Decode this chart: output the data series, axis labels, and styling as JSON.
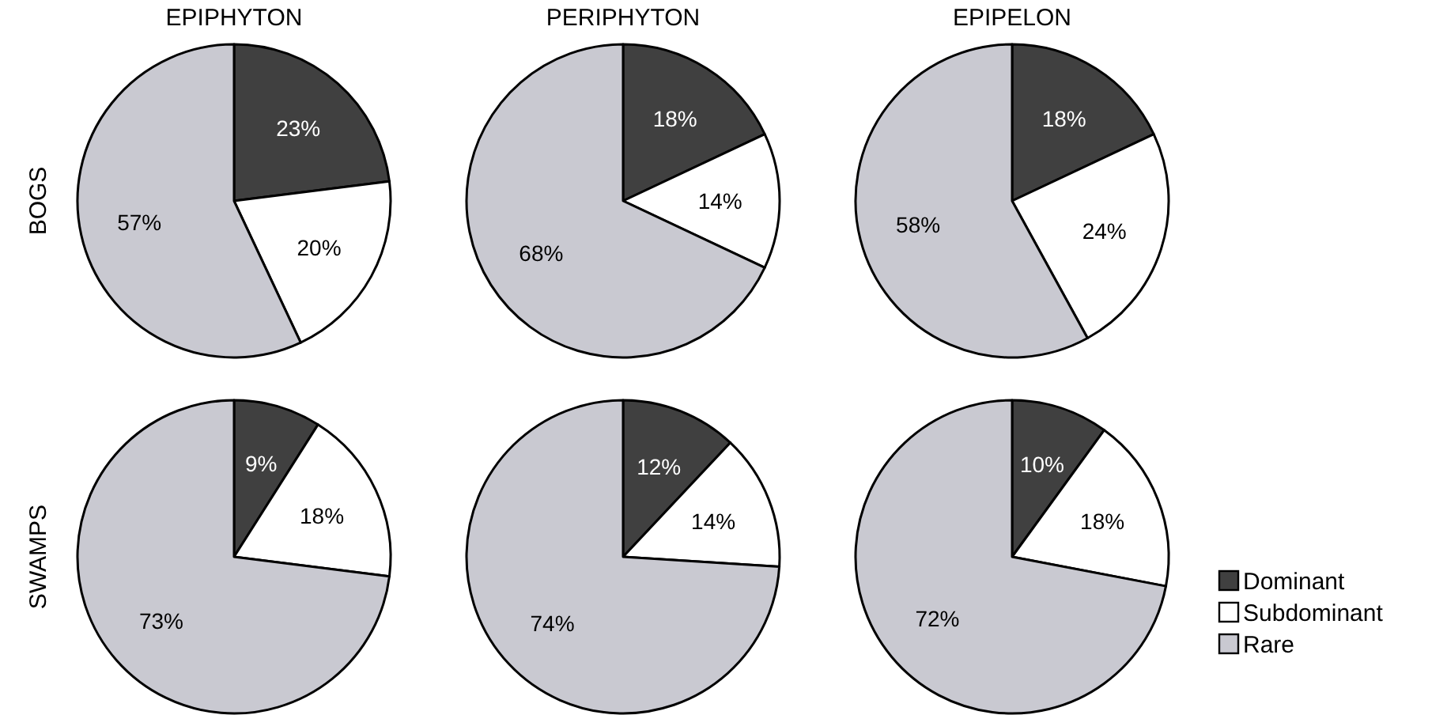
{
  "chart_data": [
    {
      "type": "pie",
      "title": "EPIPHYTON",
      "ylabel": "BOGS",
      "categories": [
        null,
        null,
        null
      ],
      "values": [
        23,
        20,
        57
      ],
      "value_labels": [
        "23%",
        "20%",
        "57%"
      ],
      "colors": [
        "#404040",
        "#ffffff",
        "#c9c9d1"
      ]
    },
    {
      "type": "pie",
      "title": "PERIPHYTON",
      "categories": [
        null,
        null,
        null
      ],
      "values": [
        18,
        14,
        68
      ],
      "value_labels": [
        "18%",
        "14%",
        "68%"
      ],
      "colors": [
        "#404040",
        "#ffffff",
        "#c9c9d1"
      ]
    },
    {
      "type": "pie",
      "title": "EPIPELON",
      "categories": [
        null,
        null,
        null
      ],
      "values": [
        18,
        24,
        58
      ],
      "value_labels": [
        "18%",
        "24%",
        "58%"
      ],
      "colors": [
        "#404040",
        "#ffffff",
        "#c9c9d1"
      ]
    },
    {
      "type": "pie",
      "ylabel": "SWAMPS",
      "categories": [
        null,
        null,
        null
      ],
      "values": [
        9,
        18,
        73
      ],
      "value_labels": [
        "9%",
        "18%",
        "73%"
      ],
      "colors": [
        "#404040",
        "#ffffff",
        "#c9c9d1"
      ]
    },
    {
      "type": "pie",
      "categories": [
        null,
        null,
        null
      ],
      "values": [
        12,
        14,
        74
      ],
      "value_labels": [
        "12%",
        "14%",
        "74%"
      ],
      "colors": [
        "#404040",
        "#ffffff",
        "#c9c9d1"
      ]
    },
    {
      "type": "pie",
      "categories": [
        "Dominant",
        "Subdominant",
        "Rare"
      ],
      "values": [
        10,
        18,
        72
      ],
      "value_labels": [
        "10%",
        "18%",
        "72%"
      ],
      "colors": [
        "#404040",
        "#ffffff",
        "#c9c9d1"
      ],
      "legend": "right"
    }
  ]
}
